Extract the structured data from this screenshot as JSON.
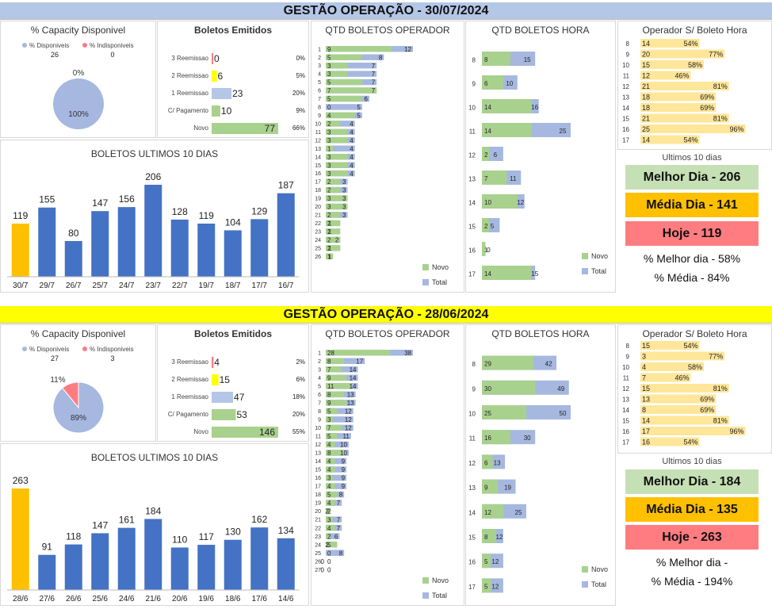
{
  "colors": {
    "blue": "#4472c4",
    "orange": "#ffc000",
    "lightblue": "#a6b8e0",
    "pink": "#ff7c80",
    "green": "#a9d18e",
    "yellow": "#ffff00",
    "paleyellow": "#ffe699",
    "banner1": "#b4c7e7",
    "banner2": "#ffff00"
  },
  "sections": [
    {
      "title": "GESTÃO OPERAÇÃO - 30/07/2024",
      "capacity": {
        "title": "% Capacity Disponivel",
        "legend": [
          "% Disponiveis",
          "% Indisponiveis"
        ],
        "counts": [
          "26",
          "0"
        ],
        "values": [
          100,
          0
        ],
        "labels": [
          "100%",
          "0%"
        ]
      },
      "emitidos": {
        "title": "Boletos Emitidos",
        "categories": [
          "3 Reemissao",
          "2 Reemissao",
          "1 Reemissao",
          "C/ Pagamento",
          "Novo"
        ],
        "values": [
          0,
          6,
          23,
          10,
          77
        ],
        "labels": [
          "0",
          "6",
          "23",
          "10",
          "77"
        ],
        "colors": [
          "#ff7c80",
          "#ffff00",
          "#b4c7e7",
          "#a9d18e",
          "#a9d18e"
        ],
        "pcts": [
          "0%",
          "5%",
          "20%",
          "9%",
          "66%"
        ]
      },
      "operador": {
        "title": "QTD BOLETOS OPERADOR",
        "rows": [
          "1",
          "2",
          "3",
          "4",
          "5",
          "6",
          "7",
          "8",
          "9",
          "10",
          "11",
          "12",
          "13",
          "14",
          "15",
          "16",
          "17",
          "18",
          "19",
          "20",
          "21",
          "22",
          "23",
          "24",
          "25",
          "26"
        ],
        "novo": [
          9,
          5,
          3,
          3,
          5,
          7,
          5,
          0,
          4,
          2,
          3,
          3,
          1,
          3,
          3,
          3,
          2,
          2,
          3,
          3,
          2,
          2,
          2,
          2,
          2,
          1
        ],
        "total": [
          12,
          8,
          7,
          7,
          7,
          7,
          6,
          5,
          5,
          4,
          4,
          4,
          4,
          4,
          4,
          4,
          3,
          3,
          3,
          3,
          3,
          1,
          1,
          2,
          1,
          1
        ],
        "legend": [
          "Novo",
          "Total"
        ]
      },
      "hora": {
        "title": "QTD BOLETOS HORA",
        "rows": [
          "8",
          "9",
          "10",
          "11",
          "12",
          "13",
          "14",
          "15",
          "16",
          "17"
        ],
        "novo": [
          8,
          6,
          14,
          14,
          2,
          7,
          10,
          2,
          1,
          14
        ],
        "total": [
          15,
          10,
          16,
          25,
          6,
          11,
          12,
          5,
          0,
          15
        ],
        "novo_labels": [
          "8",
          "6",
          "14",
          "14",
          "2",
          "7",
          "10",
          "2",
          "1",
          "14"
        ],
        "total_labels": [
          "15",
          "10",
          "16",
          "25",
          "6",
          "11",
          "12",
          "5",
          "0",
          "15"
        ],
        "legend": [
          "Novo",
          "Total"
        ]
      },
      "opsb": {
        "title": "Operador S/ Boleto Hora",
        "rows": [
          "8",
          "9",
          "10",
          "11",
          "12",
          "13",
          "14",
          "15",
          "16",
          "17"
        ],
        "values": [
          14,
          20,
          15,
          12,
          21,
          18,
          18,
          21,
          25,
          14
        ],
        "pcts": [
          54,
          77,
          58,
          46,
          81,
          69,
          69,
          81,
          96,
          54
        ],
        "pct_labels": [
          "54%",
          "77%",
          "58%",
          "46%",
          "81%",
          "69%",
          "69%",
          "81%",
          "96%",
          "54%"
        ]
      },
      "ultimos": {
        "title": "BOLETOS ULTIMOS 10 DIAS",
        "categories": [
          "30/7",
          "29/7",
          "26/7",
          "25/7",
          "24/7",
          "23/7",
          "22/7",
          "19/7",
          "18/7",
          "17/7",
          "16/7"
        ],
        "values": [
          119,
          155,
          80,
          147,
          156,
          206,
          128,
          119,
          104,
          129,
          187
        ]
      },
      "kpi": {
        "caption": "Ultimos 10 dias",
        "melhor": "Melhor Dia - 206",
        "media": "Média Dia - 141",
        "hoje": "Hoje - 119",
        "pct_melhor": "% Melhor dia - 58%",
        "pct_media": "% Média  - 84%"
      }
    },
    {
      "title": "GESTÃO OPERAÇÃO - 28/06/2024",
      "capacity": {
        "title": "% Capacity Disponivel",
        "legend": [
          "% Disponiveis",
          "% Indisponiveis"
        ],
        "counts": [
          "27",
          "3"
        ],
        "values": [
          89,
          11
        ],
        "labels": [
          "89%",
          "11%"
        ]
      },
      "emitidos": {
        "title": "Boletos Emitidos",
        "categories": [
          "3 Reemissao",
          "2 Reemissao",
          "1 Reemissao",
          "C/ Pagamento",
          "Novo"
        ],
        "values": [
          4,
          15,
          47,
          53,
          146
        ],
        "labels": [
          "4",
          "15",
          "47",
          "53",
          "146"
        ],
        "colors": [
          "#ff7c80",
          "#ffff00",
          "#b4c7e7",
          "#a9d18e",
          "#a9d18e"
        ],
        "pcts": [
          "2%",
          "6%",
          "18%",
          "20%",
          "55%"
        ]
      },
      "operador": {
        "title": "QTD BOLETOS OPERADOR",
        "rows": [
          "1",
          "2",
          "3",
          "4",
          "5",
          "6",
          "7",
          "8",
          "9",
          "10",
          "11",
          "12",
          "13",
          "14",
          "15",
          "16",
          "17",
          "18",
          "19",
          "20",
          "21",
          "22",
          "23",
          "24",
          "25",
          "26",
          "27"
        ],
        "novo": [
          28,
          8,
          7,
          9,
          11,
          8,
          9,
          5,
          3,
          7,
          5,
          4,
          8,
          4,
          4,
          3,
          4,
          5,
          4,
          2,
          3,
          4,
          2,
          5,
          0,
          0,
          0
        ],
        "total": [
          38,
          17,
          14,
          14,
          14,
          13,
          13,
          12,
          12,
          12,
          11,
          10,
          10,
          9,
          9,
          9,
          9,
          8,
          7,
          2,
          7,
          7,
          6,
          2,
          8,
          0,
          0
        ],
        "legend": [
          "Novo",
          "Total"
        ]
      },
      "hora": {
        "title": "QTD BOLETOS HORA",
        "rows": [
          "8",
          "9",
          "10",
          "11",
          "12",
          "13",
          "14",
          "15",
          "16",
          "17"
        ],
        "novo": [
          29,
          30,
          25,
          16,
          6,
          9,
          12,
          8,
          5,
          5
        ],
        "total": [
          42,
          49,
          50,
          30,
          13,
          19,
          25,
          12,
          12,
          12
        ],
        "novo_labels": [
          "29",
          "30",
          "25",
          "16",
          "6",
          "9",
          "12",
          "8",
          "5",
          "5"
        ],
        "total_labels": [
          "42",
          "49",
          "50",
          "30",
          "13",
          "19",
          "25",
          "12",
          "12",
          "12"
        ],
        "legend": [
          "Novo",
          "Total"
        ]
      },
      "opsb": {
        "title": "Operador S/ Boleto Hora",
        "rows": [
          "8",
          "9",
          "10",
          "11",
          "12",
          "13",
          "14",
          "15",
          "16",
          "17"
        ],
        "values": [
          15,
          3,
          4,
          7,
          15,
          13,
          8,
          14,
          17,
          16
        ],
        "pcts": [
          54,
          77,
          58,
          46,
          81,
          69,
          69,
          81,
          96,
          54
        ],
        "pct_labels": [
          "54%",
          "77%",
          "58%",
          "46%",
          "81%",
          "69%",
          "69%",
          "81%",
          "96%",
          "54%"
        ]
      },
      "ultimos": {
        "title": "BOLETOS ULTIMOS 10 DIAS",
        "categories": [
          "28/6",
          "27/6",
          "26/6",
          "25/6",
          "24/6",
          "21/6",
          "20/6",
          "19/6",
          "18/6",
          "17/6",
          "14/6"
        ],
        "values": [
          263,
          91,
          118,
          147,
          161,
          184,
          110,
          117,
          130,
          162,
          134
        ]
      },
      "kpi": {
        "caption": "Ultimos 10 dias",
        "melhor": "Melhor Dia - 184",
        "media": "Média Dia - 135",
        "hoje": "Hoje - 263",
        "pct_melhor": "% Melhor dia -",
        "pct_media": "% Média  - 194%"
      }
    }
  ]
}
